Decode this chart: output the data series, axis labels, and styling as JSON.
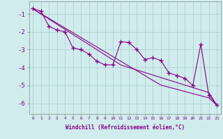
{
  "xlabel": "Windchill (Refroidissement éolien,°C)",
  "x_values": [
    0,
    1,
    2,
    3,
    4,
    5,
    6,
    7,
    8,
    9,
    10,
    11,
    12,
    13,
    14,
    15,
    16,
    17,
    18,
    19,
    20,
    21,
    22,
    23
  ],
  "y_main": [
    -0.7,
    -0.85,
    -1.7,
    -1.9,
    -2.0,
    -2.9,
    -3.0,
    -3.25,
    -3.65,
    -3.85,
    -3.85,
    -2.55,
    -2.6,
    -3.0,
    -3.55,
    -3.45,
    -3.6,
    -4.3,
    -4.45,
    -4.6,
    -5.0,
    -2.7,
    -5.55,
    -6.1
  ],
  "y_trend1": [
    -0.72,
    -0.99,
    -1.25,
    -1.52,
    -1.79,
    -2.05,
    -2.32,
    -2.59,
    -2.85,
    -3.12,
    -3.39,
    -3.65,
    -3.92,
    -4.18,
    -4.45,
    -4.72,
    -4.98,
    -5.1,
    -5.22,
    -5.34,
    -5.46,
    -5.58,
    -5.7,
    -6.1
  ],
  "y_trend2": [
    -0.72,
    -1.01,
    -1.29,
    -1.58,
    -1.86,
    -2.15,
    -2.43,
    -2.72,
    -3.0,
    -3.29,
    -3.57,
    -3.86,
    -4.0,
    -4.14,
    -4.28,
    -4.42,
    -4.56,
    -4.7,
    -4.84,
    -4.98,
    -5.12,
    -5.26,
    -5.4,
    -6.1
  ],
  "line_color": "#880088",
  "bg_color": "#d0ecec",
  "grid_color": "#aacccc",
  "ylim": [
    -6.6,
    -0.3
  ],
  "yticks": [
    -1,
    -2,
    -3,
    -4,
    -5,
    -6
  ],
  "marker": "+",
  "markersize": 4,
  "linewidth": 0.8
}
